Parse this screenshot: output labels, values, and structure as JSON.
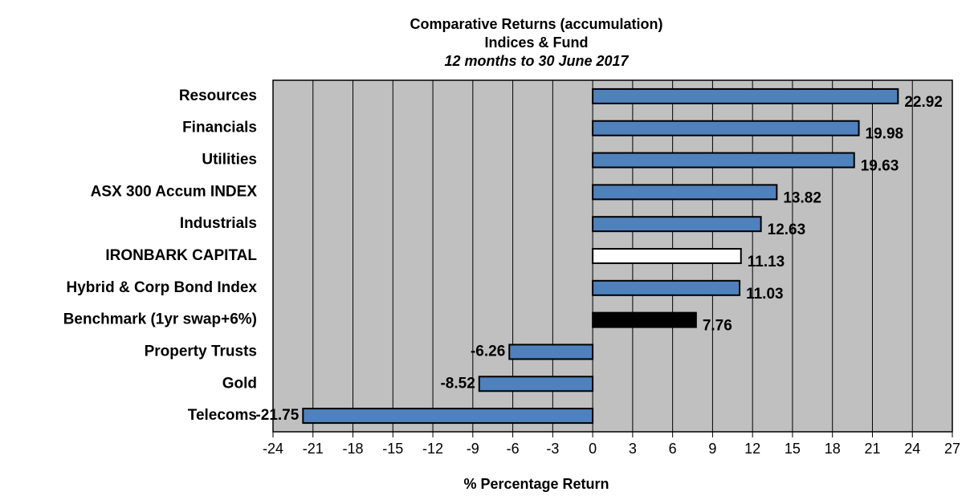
{
  "chart_data": {
    "type": "bar",
    "orientation": "horizontal",
    "title": "Comparative Returns (accumulation)",
    "subtitle": "Indices & Fund",
    "period": "12 months to 30 June 2017",
    "x_label": "% Percentage Return",
    "categories": [
      "Resources",
      "Financials",
      "Utilities",
      "ASX 300 Accum INDEX",
      "Industrials",
      "IRONBARK CAPITAL",
      "Hybrid & Corp Bond Index",
      "Benchmark (1yr swap+6%)",
      "Property Trusts",
      "Gold",
      "Telecoms"
    ],
    "values": [
      22.92,
      19.98,
      19.63,
      13.82,
      12.63,
      11.13,
      11.03,
      7.76,
      -6.26,
      -8.52,
      -21.75
    ],
    "colors": [
      "#4f81bd",
      "#4f81bd",
      "#4f81bd",
      "#4f81bd",
      "#4f81bd",
      "#ffffff",
      "#4f81bd",
      "#000000",
      "#4f81bd",
      "#4f81bd",
      "#4f81bd"
    ],
    "xlim": [
      -24,
      27
    ],
    "xticks": [
      -24,
      -21,
      -18,
      -15,
      -12,
      -9,
      -6,
      -3,
      0,
      3,
      6,
      9,
      12,
      15,
      18,
      21,
      24,
      27
    ],
    "grid": true,
    "background": "#c0c0c0"
  }
}
